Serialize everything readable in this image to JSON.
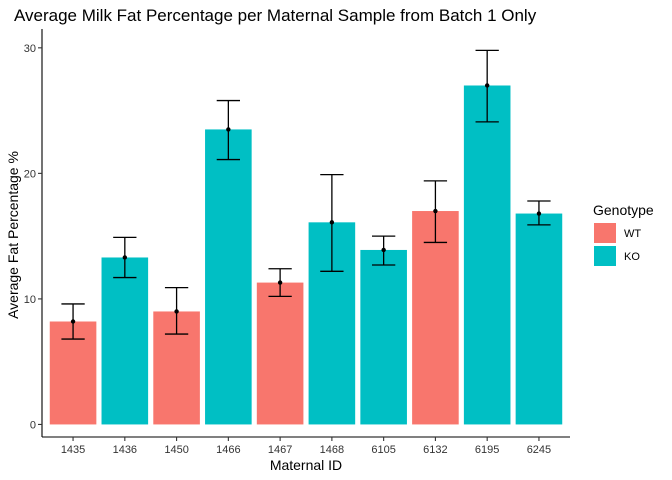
{
  "chart_data": {
    "type": "bar",
    "title": "Average Milk Fat Percentage per Maternal Sample from Batch 1 Only",
    "xlabel": "Maternal ID",
    "ylabel": "Average Fat Percentage %",
    "ylim": [
      -1,
      31.5
    ],
    "yticks": [
      0,
      10,
      20,
      30
    ],
    "grid": false,
    "legend": {
      "title": "Genotype",
      "placement": "right",
      "entries": [
        {
          "name": "WT",
          "color": "#F8766D"
        },
        {
          "name": "KO",
          "color": "#00BFC4"
        }
      ]
    },
    "bars": [
      {
        "id": "1435",
        "genotype": "WT",
        "value": 8.2,
        "err_low": 6.8,
        "err_high": 9.6
      },
      {
        "id": "1436",
        "genotype": "KO",
        "value": 13.3,
        "err_low": 11.7,
        "err_high": 14.9
      },
      {
        "id": "1450",
        "genotype": "WT",
        "value": 9.0,
        "err_low": 7.2,
        "err_high": 10.9
      },
      {
        "id": "1466",
        "genotype": "KO",
        "value": 23.5,
        "err_low": 21.1,
        "err_high": 25.8
      },
      {
        "id": "1467",
        "genotype": "WT",
        "value": 11.3,
        "err_low": 10.2,
        "err_high": 12.4
      },
      {
        "id": "1468",
        "genotype": "KO",
        "value": 16.1,
        "err_low": 12.2,
        "err_high": 19.9
      },
      {
        "id": "6105",
        "genotype": "KO",
        "value": 13.9,
        "err_low": 12.7,
        "err_high": 15.0
      },
      {
        "id": "6132",
        "genotype": "WT",
        "value": 17.0,
        "err_low": 14.5,
        "err_high": 19.4
      },
      {
        "id": "6195",
        "genotype": "KO",
        "value": 27.0,
        "err_low": 24.1,
        "err_high": 29.8
      },
      {
        "id": "6245",
        "genotype": "KO",
        "value": 16.8,
        "err_low": 15.9,
        "err_high": 17.8
      }
    ]
  }
}
